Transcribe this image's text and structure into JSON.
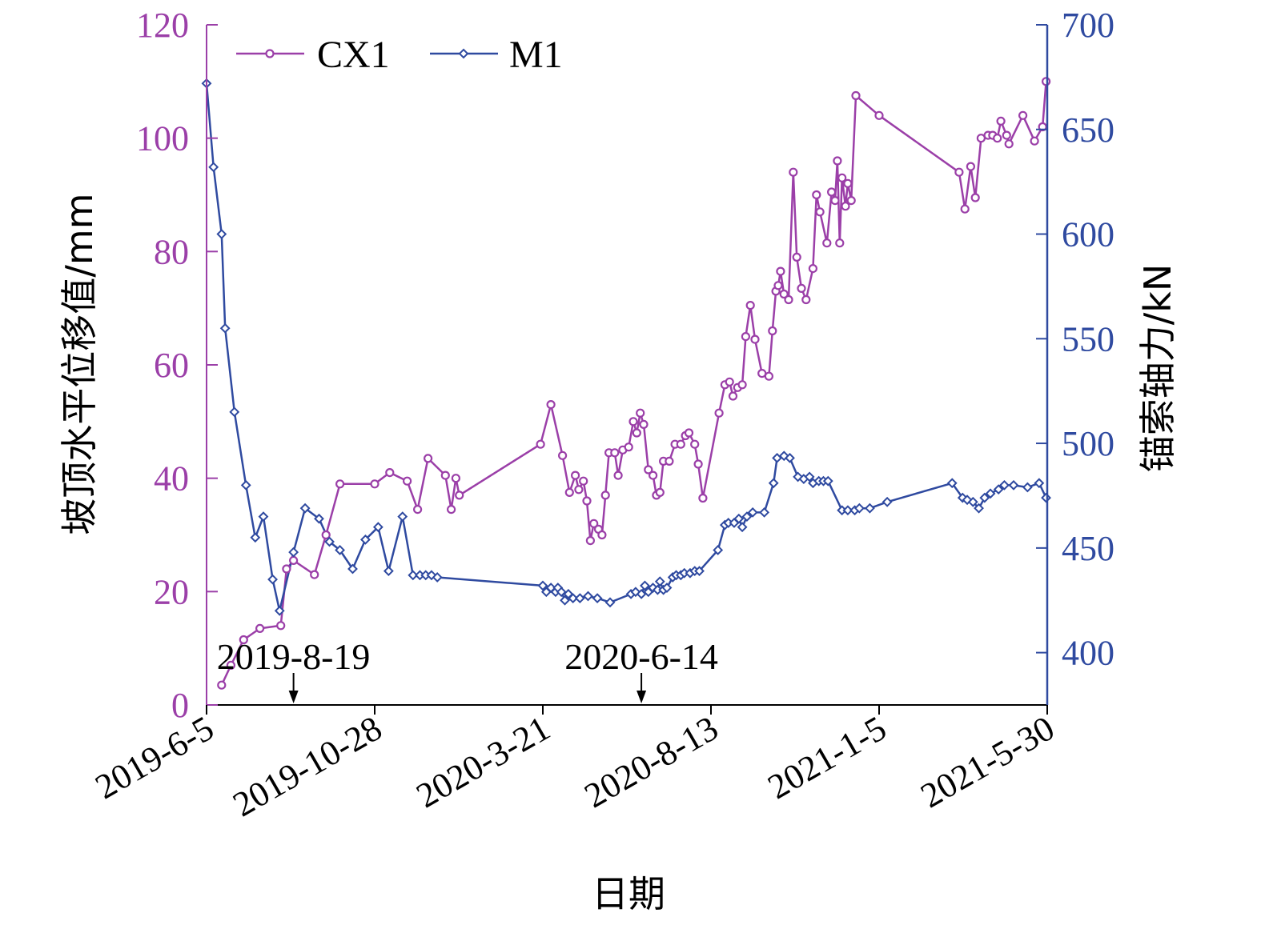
{
  "chart_data": {
    "type": "line",
    "xlabel": "日期",
    "ylabel_left": "坡顶水平位移值/mm",
    "ylabel_right": "锚索轴力/kN",
    "xlim": [
      "2019-6-5",
      "2021-5-30"
    ],
    "ylim_left": [
      0,
      120
    ],
    "ylim_right": [
      375,
      700
    ],
    "x_ticks": [
      "2019-6-5",
      "2019-10-28",
      "2020-3-21",
      "2020-8-13",
      "2021-1-5",
      "2021-5-30"
    ],
    "y_left_ticks": [
      "0",
      "20",
      "40",
      "60",
      "80",
      "100",
      "120"
    ],
    "y_right_ticks": [
      "400",
      "450",
      "500",
      "550",
      "600",
      "650",
      "700"
    ],
    "grid": false,
    "legend_position": "top-left",
    "colors": {
      "cx1": "#9b3fa8",
      "m1": "#2f4aa0",
      "left_axis": "#9b3fa8",
      "right_axis": "#2f4aa0"
    },
    "annotations": [
      {
        "date": "2019-8-19",
        "label": "2019-8-19"
      },
      {
        "date": "2020-6-14",
        "label": "2020-6-14"
      }
    ],
    "series": [
      {
        "name": "CX1",
        "axis": "left",
        "marker": "circle",
        "points": [
          [
            "2019-6-18",
            3.5
          ],
          [
            "2019-6-26",
            7
          ],
          [
            "2019-7-7",
            11.5
          ],
          [
            "2019-7-21",
            13.5
          ],
          [
            "2019-8-8",
            14
          ],
          [
            "2019-8-13",
            24
          ],
          [
            "2019-8-19",
            25.5
          ],
          [
            "2019-9-6",
            23
          ],
          [
            "2019-9-16",
            30
          ],
          [
            "2019-9-28",
            39
          ],
          [
            "2019-10-28",
            39
          ],
          [
            "2019-11-10",
            41
          ],
          [
            "2019-11-25",
            39.5
          ],
          [
            "2019-12-4",
            34.5
          ],
          [
            "2019-12-13",
            43.5
          ],
          [
            "2019-12-28",
            40.5
          ],
          [
            "2020-1-2",
            34.5
          ],
          [
            "2020-1-6",
            40
          ],
          [
            "2020-1-9",
            37
          ],
          [
            "2020-3-19",
            46
          ],
          [
            "2020-3-28",
            53
          ],
          [
            "2020-4-7",
            44
          ],
          [
            "2020-4-13",
            37.5
          ],
          [
            "2020-4-18",
            40.5
          ],
          [
            "2020-4-21",
            38
          ],
          [
            "2020-4-25",
            39.5
          ],
          [
            "2020-4-28",
            36
          ],
          [
            "2020-5-1",
            29
          ],
          [
            "2020-5-4",
            32
          ],
          [
            "2020-5-8",
            31
          ],
          [
            "2020-5-11",
            30
          ],
          [
            "2020-5-14",
            37
          ],
          [
            "2020-5-17",
            44.5
          ],
          [
            "2020-5-22",
            44.5
          ],
          [
            "2020-5-25",
            40.5
          ],
          [
            "2020-5-29",
            45
          ],
          [
            "2020-6-3",
            45.5
          ],
          [
            "2020-6-7",
            50
          ],
          [
            "2020-6-10",
            48
          ],
          [
            "2020-6-13",
            51.5
          ],
          [
            "2020-6-16",
            49.5
          ],
          [
            "2020-6-20",
            41.5
          ],
          [
            "2020-6-24",
            40.5
          ],
          [
            "2020-6-27",
            37
          ],
          [
            "2020-6-30",
            37.5
          ],
          [
            "2020-7-3",
            43
          ],
          [
            "2020-7-8",
            43
          ],
          [
            "2020-7-13",
            46
          ],
          [
            "2020-7-18",
            46
          ],
          [
            "2020-7-22",
            47.5
          ],
          [
            "2020-7-25",
            48
          ],
          [
            "2020-7-30",
            46
          ],
          [
            "2020-8-2",
            42.5
          ],
          [
            "2020-8-6",
            36.5
          ],
          [
            "2020-8-20",
            51.5
          ],
          [
            "2020-8-25",
            56.5
          ],
          [
            "2020-8-29",
            57
          ],
          [
            "2020-9-1",
            54.5
          ],
          [
            "2020-9-5",
            56
          ],
          [
            "2020-9-9",
            56.5
          ],
          [
            "2020-9-12",
            65
          ],
          [
            "2020-9-16",
            70.5
          ],
          [
            "2020-9-20",
            64.5
          ],
          [
            "2020-9-26",
            58.5
          ],
          [
            "2020-10-2",
            58
          ],
          [
            "2020-10-5",
            66
          ],
          [
            "2020-10-8",
            73
          ],
          [
            "2020-10-10",
            74
          ],
          [
            "2020-10-12",
            76.5
          ],
          [
            "2020-10-15",
            72.5
          ],
          [
            "2020-10-19",
            71.5
          ],
          [
            "2020-10-23",
            94
          ],
          [
            "2020-10-26",
            79
          ],
          [
            "2020-10-30",
            73.5
          ],
          [
            "2020-11-3",
            71.5
          ],
          [
            "2020-11-9",
            77
          ],
          [
            "2020-11-12",
            90
          ],
          [
            "2020-11-15",
            87
          ],
          [
            "2020-11-21",
            81.5
          ],
          [
            "2020-11-25",
            90.5
          ],
          [
            "2020-11-28",
            89
          ],
          [
            "2020-11-30",
            96
          ],
          [
            "2020-12-2",
            81.5
          ],
          [
            "2020-12-4",
            93
          ],
          [
            "2020-12-7",
            88
          ],
          [
            "2020-12-9",
            92
          ],
          [
            "2020-12-12",
            89
          ],
          [
            "2020-12-16",
            107.5
          ],
          [
            "2021-1-5",
            104
          ],
          [
            "2021-3-15",
            94
          ],
          [
            "2021-3-20",
            87.5
          ],
          [
            "2021-3-25",
            95
          ],
          [
            "2021-3-29",
            89.5
          ],
          [
            "2021-4-3",
            100
          ],
          [
            "2021-4-9",
            100.5
          ],
          [
            "2021-4-13",
            100.5
          ],
          [
            "2021-4-17",
            100
          ],
          [
            "2021-4-20",
            103
          ],
          [
            "2021-4-25",
            100.5
          ],
          [
            "2021-4-27",
            99
          ],
          [
            "2021-5-9",
            104
          ],
          [
            "2021-5-19",
            99.5
          ],
          [
            "2021-5-26",
            102
          ],
          [
            "2021-5-29",
            110
          ]
        ]
      },
      {
        "name": "M1",
        "axis": "right",
        "marker": "diamond",
        "points": [
          [
            "2019-6-5",
            672
          ],
          [
            "2019-6-11",
            632
          ],
          [
            "2019-6-18",
            600
          ],
          [
            "2019-6-21",
            555
          ],
          [
            "2019-6-29",
            515
          ],
          [
            "2019-7-9",
            480
          ],
          [
            "2019-7-17",
            455
          ],
          [
            "2019-7-24",
            465
          ],
          [
            "2019-8-1",
            435
          ],
          [
            "2019-8-7",
            420
          ],
          [
            "2019-8-19",
            448
          ],
          [
            "2019-8-29",
            469
          ],
          [
            "2019-9-10",
            464
          ],
          [
            "2019-9-19",
            453
          ],
          [
            "2019-9-28",
            449
          ],
          [
            "2019-10-9",
            440
          ],
          [
            "2019-10-20",
            454
          ],
          [
            "2019-10-31",
            460
          ],
          [
            "2019-11-9",
            439
          ],
          [
            "2019-11-21",
            465
          ],
          [
            "2019-11-30",
            437
          ],
          [
            "2019-12-6",
            437
          ],
          [
            "2019-12-11",
            437
          ],
          [
            "2019-12-16",
            437
          ],
          [
            "2019-12-21",
            436
          ],
          [
            "2020-3-21",
            432
          ],
          [
            "2020-3-24",
            429
          ],
          [
            "2020-3-28",
            431
          ],
          [
            "2020-4-1",
            429
          ],
          [
            "2020-4-3",
            431
          ],
          [
            "2020-4-6",
            429
          ],
          [
            "2020-4-9",
            425
          ],
          [
            "2020-4-12",
            428
          ],
          [
            "2020-4-16",
            426
          ],
          [
            "2020-4-22",
            426
          ],
          [
            "2020-4-29",
            427
          ],
          [
            "2020-5-7",
            426
          ],
          [
            "2020-5-18",
            424
          ],
          [
            "2020-6-5",
            428
          ],
          [
            "2020-6-9",
            429
          ],
          [
            "2020-6-14",
            428
          ],
          [
            "2020-6-17",
            432
          ],
          [
            "2020-6-20",
            429
          ],
          [
            "2020-6-24",
            431
          ],
          [
            "2020-6-28",
            430
          ],
          [
            "2020-6-30",
            434
          ],
          [
            "2020-7-3",
            430
          ],
          [
            "2020-7-6",
            431
          ],
          [
            "2020-7-11",
            436
          ],
          [
            "2020-7-14",
            437
          ],
          [
            "2020-7-18",
            437
          ],
          [
            "2020-7-21",
            438
          ],
          [
            "2020-7-26",
            438
          ],
          [
            "2020-7-30",
            439
          ],
          [
            "2020-8-3",
            439
          ],
          [
            "2020-8-19",
            449
          ],
          [
            "2020-8-25",
            461
          ],
          [
            "2020-8-28",
            462
          ],
          [
            "2020-9-2",
            462
          ],
          [
            "2020-9-6",
            464
          ],
          [
            "2020-9-9",
            460
          ],
          [
            "2020-9-13",
            465
          ],
          [
            "2020-9-18",
            467
          ],
          [
            "2020-9-28",
            467
          ],
          [
            "2020-10-6",
            481
          ],
          [
            "2020-10-9",
            493
          ],
          [
            "2020-10-15",
            494
          ],
          [
            "2020-10-20",
            493
          ],
          [
            "2020-10-27",
            484
          ],
          [
            "2020-11-1",
            483
          ],
          [
            "2020-11-6",
            484
          ],
          [
            "2020-11-9",
            481
          ],
          [
            "2020-11-14",
            482
          ],
          [
            "2020-11-18",
            482
          ],
          [
            "2020-11-22",
            482
          ],
          [
            "2020-12-4",
            468
          ],
          [
            "2020-12-9",
            468
          ],
          [
            "2020-12-15",
            468
          ],
          [
            "2020-12-19",
            469
          ],
          [
            "2020-12-28",
            469
          ],
          [
            "2021-1-12",
            472
          ],
          [
            "2021-3-9",
            481
          ],
          [
            "2021-3-18",
            474
          ],
          [
            "2021-3-22",
            473
          ],
          [
            "2021-3-27",
            472
          ],
          [
            "2021-4-1",
            469
          ],
          [
            "2021-4-6",
            474
          ],
          [
            "2021-4-11",
            476
          ],
          [
            "2021-4-18",
            478
          ],
          [
            "2021-4-23",
            480
          ],
          [
            "2021-5-1",
            480
          ],
          [
            "2021-5-13",
            479
          ],
          [
            "2021-5-23",
            481
          ],
          [
            "2021-5-29",
            474
          ]
        ]
      }
    ]
  }
}
